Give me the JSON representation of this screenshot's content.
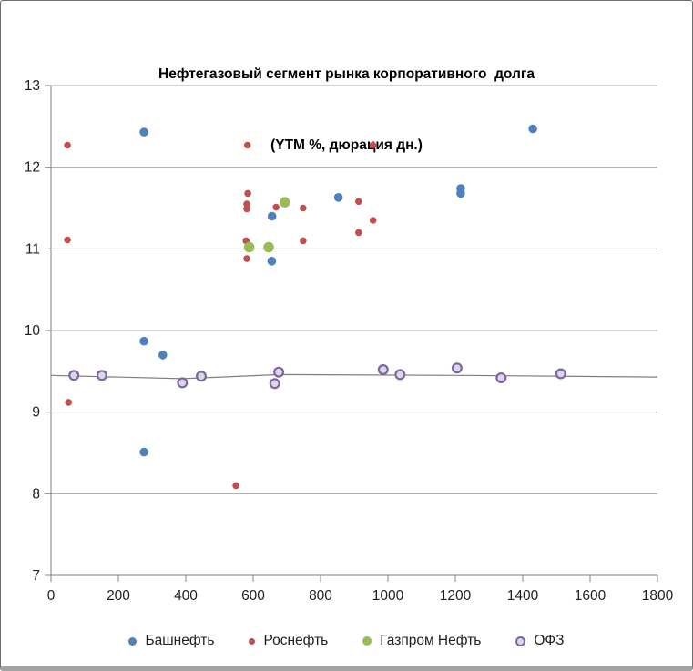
{
  "title": {
    "line1": "Нефтегазовый сегмент рынка корпоративного  долга",
    "line2": "(YTM %, дюрация дн.)"
  },
  "style": {
    "background": "#FFFFFF",
    "grid_color": "#A6A6A6",
    "axis_color": "#808080",
    "tick_label_color": "#1F1F1F",
    "title_color": "#000000",
    "trendline_color": "#7F7F7F"
  },
  "chart_data": {
    "type": "scatter",
    "title": "Нефтегазовый сегмент рынка корпоративного долга",
    "subtitle": "(YTM %, дюрация дн.)",
    "xlabel": "",
    "ylabel": "",
    "xlim": [
      0,
      1800
    ],
    "ylim": [
      7,
      13
    ],
    "x_ticks": [
      0,
      200,
      400,
      600,
      800,
      1000,
      1200,
      1400,
      1600,
      1800
    ],
    "y_ticks": [
      7,
      8,
      9,
      10,
      11,
      12,
      13
    ],
    "grid": "horizontal",
    "legend_position": "bottom",
    "series": [
      {
        "name": "Башнефть",
        "color": "#4F81BD",
        "marker": {
          "fill": "#4F81BD",
          "stroke": "none",
          "stroke_width": 0,
          "radius": 4.8,
          "legend_size": 9
        },
        "points": [
          [
            276,
            12.43
          ],
          [
            1430,
            12.47
          ],
          [
            1216,
            11.74
          ],
          [
            1216,
            11.68
          ],
          [
            853,
            11.63
          ],
          [
            656,
            11.4
          ],
          [
            655,
            10.85
          ],
          [
            276,
            9.87
          ],
          [
            332,
            9.7
          ],
          [
            276,
            8.51
          ]
        ]
      },
      {
        "name": "Роснефть",
        "color": "#C0504D",
        "marker": {
          "fill": "#C0504D",
          "stroke": "none",
          "stroke_width": 0,
          "radius": 3.8,
          "legend_size": 7
        },
        "points": [
          [
            49,
            12.27
          ],
          [
            583,
            12.27
          ],
          [
            955,
            12.27
          ],
          [
            584,
            11.68
          ],
          [
            913,
            11.58
          ],
          [
            581,
            11.55
          ],
          [
            668,
            11.51
          ],
          [
            748,
            11.5
          ],
          [
            581,
            11.49
          ],
          [
            956,
            11.35
          ],
          [
            913,
            11.2
          ],
          [
            49,
            11.11
          ],
          [
            579,
            11.1
          ],
          [
            748,
            11.1
          ],
          [
            581,
            10.88
          ],
          [
            52,
            9.12
          ],
          [
            549,
            8.1
          ]
        ]
      },
      {
        "name": "Газпром Нефть",
        "color": "#9BBB59",
        "marker": {
          "fill": "#9BBB59",
          "stroke": "none",
          "stroke_width": 0,
          "radius": 5.8,
          "legend_size": 10
        },
        "points": [
          [
            694,
            11.57
          ],
          [
            588,
            11.02
          ],
          [
            646,
            11.02
          ]
        ]
      },
      {
        "name": "ОФЗ",
        "color": "#8064A2",
        "marker": {
          "fill": "#D9D9E3",
          "stroke": "#8064A2",
          "stroke_width": 2.2,
          "radius": 4.9,
          "legend_size": 11
        },
        "points": [
          [
            68,
            9.45
          ],
          [
            151,
            9.45
          ],
          [
            390,
            9.36
          ],
          [
            446,
            9.44
          ],
          [
            664,
            9.35
          ],
          [
            676,
            9.49
          ],
          [
            986,
            9.52
          ],
          [
            1036,
            9.46
          ],
          [
            1205,
            9.54
          ],
          [
            1336,
            9.42
          ],
          [
            1513,
            9.47
          ]
        ]
      }
    ],
    "trendline": {
      "series": "ОФЗ",
      "points": [
        [
          0,
          9.45
        ],
        [
          390,
          9.41
        ],
        [
          680,
          9.46
        ],
        [
          1210,
          9.45
        ],
        [
          1800,
          9.43
        ]
      ]
    }
  }
}
